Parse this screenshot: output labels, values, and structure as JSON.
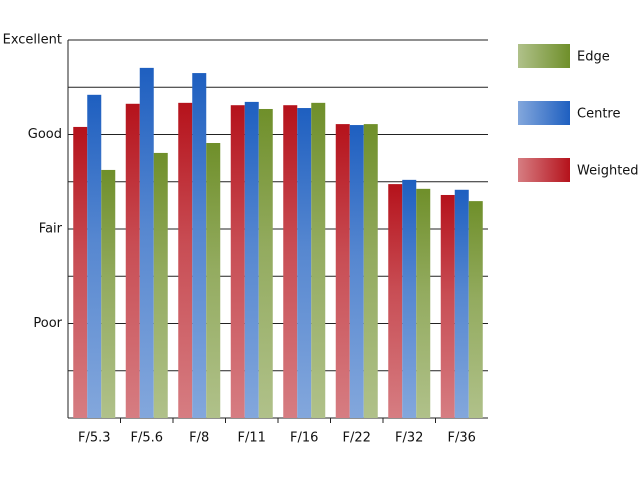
{
  "chart_data": {
    "type": "bar",
    "categories": [
      "F/5.3",
      "F/5.6",
      "F/8",
      "F/11",
      "F/16",
      "F/22",
      "F/32",
      "F/36"
    ],
    "series": [
      {
        "name": "Weighted",
        "color": "#b5121b",
        "values": [
          6.16,
          6.65,
          6.67,
          6.62,
          6.62,
          6.22,
          4.95,
          4.72
        ]
      },
      {
        "name": "Centre",
        "color": "#1e5fc0",
        "values": [
          6.84,
          7.41,
          7.3,
          6.69,
          6.56,
          6.2,
          5.04,
          4.83
        ]
      },
      {
        "name": "Edge",
        "color": "#6f8f2a",
        "values": [
          5.25,
          5.61,
          5.82,
          6.54,
          6.67,
          6.22,
          4.85,
          4.59
        ]
      }
    ],
    "ylim": [
      0,
      8
    ],
    "yticks": [
      {
        "value": 2,
        "label": "Poor"
      },
      {
        "value": 4,
        "label": "Fair"
      },
      {
        "value": 6,
        "label": "Good"
      },
      {
        "value": 8,
        "label": "Excellent"
      }
    ],
    "minor_yticks": [
      1,
      3,
      5,
      7
    ],
    "grid": true,
    "legend": "right"
  }
}
